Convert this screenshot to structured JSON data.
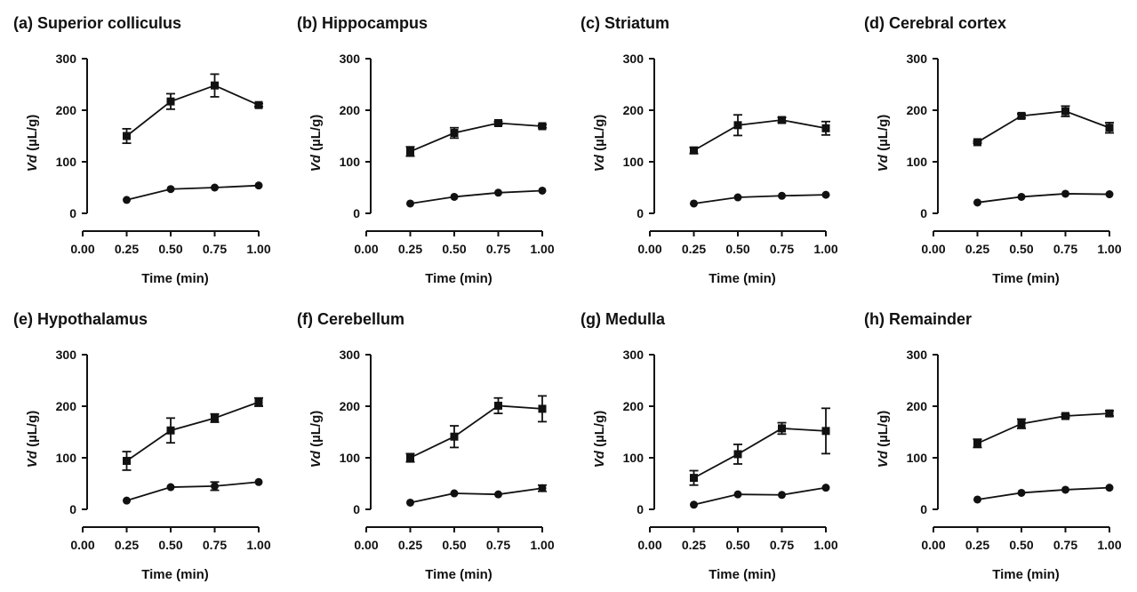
{
  "chart_data": [
    {
      "type": "line",
      "title": "(a) Superior colliculus",
      "xlabel": "Time (min)",
      "ylabel_italic": "Vd",
      "ylabel_rest": " (µL/g)",
      "xlim": [
        0,
        1
      ],
      "ylim": [
        0,
        300
      ],
      "xticks": [
        "0.00",
        "0.25",
        "0.50",
        "0.75",
        "1.00"
      ],
      "yticks": [
        "0",
        "100",
        "200",
        "300"
      ],
      "x": [
        0.25,
        0.5,
        0.75,
        1.0
      ],
      "series": [
        {
          "marker": "square",
          "values": [
            150,
            217,
            248,
            210
          ],
          "errors": [
            14,
            15,
            22,
            3
          ]
        },
        {
          "marker": "circle",
          "values": [
            26,
            47,
            50,
            54
          ],
          "errors": [
            0,
            0,
            0,
            0
          ]
        }
      ]
    },
    {
      "type": "line",
      "title": "(b) Hippocampus",
      "xlabel": "Time (min)",
      "ylabel_italic": "Vd",
      "ylabel_rest": " (µL/g)",
      "xlim": [
        0,
        1
      ],
      "ylim": [
        0,
        300
      ],
      "xticks": [
        "0.00",
        "0.25",
        "0.50",
        "0.75",
        "1.00"
      ],
      "yticks": [
        "0",
        "100",
        "200",
        "300"
      ],
      "x": [
        0.25,
        0.5,
        0.75,
        1.0
      ],
      "series": [
        {
          "marker": "square",
          "values": [
            120,
            156,
            175,
            169
          ],
          "errors": [
            9,
            10,
            3,
            3
          ]
        },
        {
          "marker": "circle",
          "values": [
            19,
            32,
            40,
            44
          ],
          "errors": [
            0,
            0,
            0,
            0
          ]
        }
      ]
    },
    {
      "type": "line",
      "title": "(c) Striatum",
      "xlabel": "Time (min)",
      "ylabel_italic": "Vd",
      "ylabel_rest": " (µL/g)",
      "xlim": [
        0,
        1
      ],
      "ylim": [
        0,
        300
      ],
      "xticks": [
        "0.00",
        "0.25",
        "0.50",
        "0.75",
        "1.00"
      ],
      "yticks": [
        "0",
        "100",
        "200",
        "300"
      ],
      "x": [
        0.25,
        0.5,
        0.75,
        1.0
      ],
      "series": [
        {
          "marker": "square",
          "values": [
            122,
            171,
            181,
            165
          ],
          "errors": [
            6,
            20,
            5,
            13
          ]
        },
        {
          "marker": "circle",
          "values": [
            19,
            31,
            34,
            36
          ],
          "errors": [
            0,
            0,
            0,
            0
          ]
        }
      ]
    },
    {
      "type": "line",
      "title": "(d) Cerebral cortex",
      "xlabel": "Time (min)",
      "ylabel_italic": "Vd",
      "ylabel_rest": " (µL/g)",
      "xlim": [
        0,
        1
      ],
      "ylim": [
        0,
        300
      ],
      "xticks": [
        "0.00",
        "0.25",
        "0.50",
        "0.75",
        "1.00"
      ],
      "yticks": [
        "0",
        "100",
        "200",
        "300"
      ],
      "x": [
        0.25,
        0.5,
        0.75,
        1.0
      ],
      "series": [
        {
          "marker": "square",
          "values": [
            138,
            189,
            198,
            166
          ],
          "errors": [
            2,
            4,
            10,
            10
          ]
        },
        {
          "marker": "circle",
          "values": [
            21,
            32,
            38,
            37
          ],
          "errors": [
            0,
            0,
            0,
            0
          ]
        }
      ]
    },
    {
      "type": "line",
      "title": "(e) Hypothalamus",
      "xlabel": "Time (min)",
      "ylabel_italic": "Vd",
      "ylabel_rest": " (µL/g)",
      "xlim": [
        0,
        1
      ],
      "ylim": [
        0,
        300
      ],
      "xticks": [
        "0.00",
        "0.25",
        "0.50",
        "0.75",
        "1.00"
      ],
      "yticks": [
        "0",
        "100",
        "200",
        "300"
      ],
      "x": [
        0.25,
        0.5,
        0.75,
        1.0
      ],
      "series": [
        {
          "marker": "square",
          "values": [
            94,
            153,
            177,
            208
          ],
          "errors": [
            18,
            24,
            8,
            8
          ]
        },
        {
          "marker": "circle",
          "values": [
            17,
            43,
            45,
            53
          ],
          "errors": [
            0,
            0,
            8,
            0
          ]
        }
      ]
    },
    {
      "type": "line",
      "title": "(f) Cerebellum",
      "xlabel": "Time (min)",
      "ylabel_italic": "Vd",
      "ylabel_rest": " (µL/g)",
      "xlim": [
        0,
        1
      ],
      "ylim": [
        0,
        300
      ],
      "xticks": [
        "0.00",
        "0.25",
        "0.50",
        "0.75",
        "1.00"
      ],
      "yticks": [
        "0",
        "100",
        "200",
        "300"
      ],
      "x": [
        0.25,
        0.5,
        0.75,
        1.0
      ],
      "series": [
        {
          "marker": "square",
          "values": [
            100,
            141,
            201,
            195
          ],
          "errors": [
            8,
            21,
            15,
            25
          ]
        },
        {
          "marker": "circle",
          "values": [
            13,
            31,
            29,
            41
          ],
          "errors": [
            0,
            0,
            0,
            6
          ]
        }
      ]
    },
    {
      "type": "line",
      "title": "(g) Medulla",
      "xlabel": "Time (min)",
      "ylabel_italic": "Vd",
      "ylabel_rest": " (µL/g)",
      "xlim": [
        0,
        1
      ],
      "ylim": [
        0,
        300
      ],
      "xticks": [
        "0.00",
        "0.25",
        "0.50",
        "0.75",
        "1.00"
      ],
      "yticks": [
        "0",
        "100",
        "200",
        "300"
      ],
      "x": [
        0.25,
        0.5,
        0.75,
        1.0
      ],
      "series": [
        {
          "marker": "square",
          "values": [
            61,
            107,
            157,
            152
          ],
          "errors": [
            14,
            19,
            11,
            44
          ]
        },
        {
          "marker": "circle",
          "values": [
            9,
            29,
            28,
            42
          ],
          "errors": [
            0,
            0,
            0,
            0
          ]
        }
      ]
    },
    {
      "type": "line",
      "title": "(h) Remainder",
      "xlabel": "Time (min)",
      "ylabel_italic": "Vd",
      "ylabel_rest": " (µL/g)",
      "xlim": [
        0,
        1
      ],
      "ylim": [
        0,
        300
      ],
      "xticks": [
        "0.00",
        "0.25",
        "0.50",
        "0.75",
        "1.00"
      ],
      "yticks": [
        "0",
        "100",
        "200",
        "300"
      ],
      "x": [
        0.25,
        0.5,
        0.75,
        1.0
      ],
      "series": [
        {
          "marker": "square",
          "values": [
            128,
            166,
            181,
            186
          ],
          "errors": [
            8,
            9,
            3,
            5
          ]
        },
        {
          "marker": "circle",
          "values": [
            19,
            32,
            38,
            42
          ],
          "errors": [
            0,
            0,
            0,
            0
          ]
        }
      ]
    }
  ]
}
